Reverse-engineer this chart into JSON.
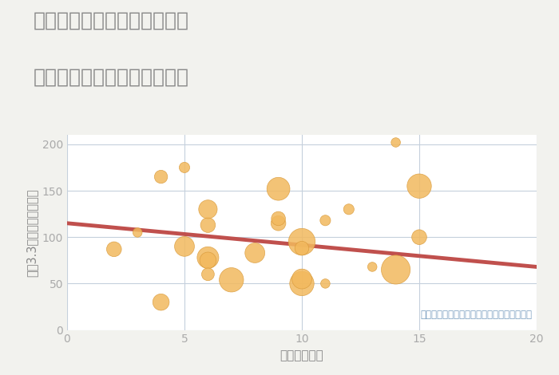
{
  "title_line1": "千葉県夷隅郡御宿町上布施の",
  "title_line2": "駅距離別中古マンション価格",
  "xlabel": "駅距離（分）",
  "ylabel": "坪（3.3㎡）単価（万円）",
  "annotation": "円の大きさは、取引のあった物件面積を示す",
  "fig_bg_color": "#f2f2ee",
  "plot_bg_color": "#ffffff",
  "grid_color": "#c5d0dc",
  "bubble_color": "#f2b95e",
  "bubble_edge_color": "#d99a3a",
  "trend_color": "#c0504d",
  "annotation_color": "#7a9fc0",
  "title_color": "#888888",
  "axis_label_color": "#888888",
  "tick_color": "#aaaaaa",
  "scatter_x": [
    2,
    3,
    4,
    4,
    5,
    5,
    6,
    6,
    6,
    6,
    6,
    7,
    8,
    9,
    9,
    9,
    10,
    10,
    10,
    10,
    11,
    11,
    12,
    13,
    14,
    14,
    15,
    15
  ],
  "scatter_y": [
    87,
    105,
    30,
    165,
    90,
    175,
    113,
    130,
    78,
    75,
    60,
    54,
    83,
    152,
    115,
    120,
    95,
    50,
    55,
    88,
    118,
    50,
    130,
    68,
    65,
    202,
    155,
    100
  ],
  "scatter_size": [
    180,
    70,
    220,
    140,
    320,
    90,
    180,
    280,
    380,
    220,
    130,
    480,
    320,
    430,
    180,
    160,
    580,
    480,
    320,
    160,
    90,
    70,
    90,
    70,
    680,
    70,
    480,
    180
  ],
  "trend_x": [
    0,
    20
  ],
  "trend_y": [
    115,
    68
  ],
  "xlim": [
    0,
    20
  ],
  "ylim": [
    0,
    210
  ],
  "xticks": [
    0,
    5,
    10,
    15,
    20
  ],
  "yticks": [
    0,
    50,
    100,
    150,
    200
  ],
  "title_fontsize": 18,
  "axis_label_fontsize": 11,
  "tick_labelsize": 10,
  "annotation_fontsize": 8.5
}
